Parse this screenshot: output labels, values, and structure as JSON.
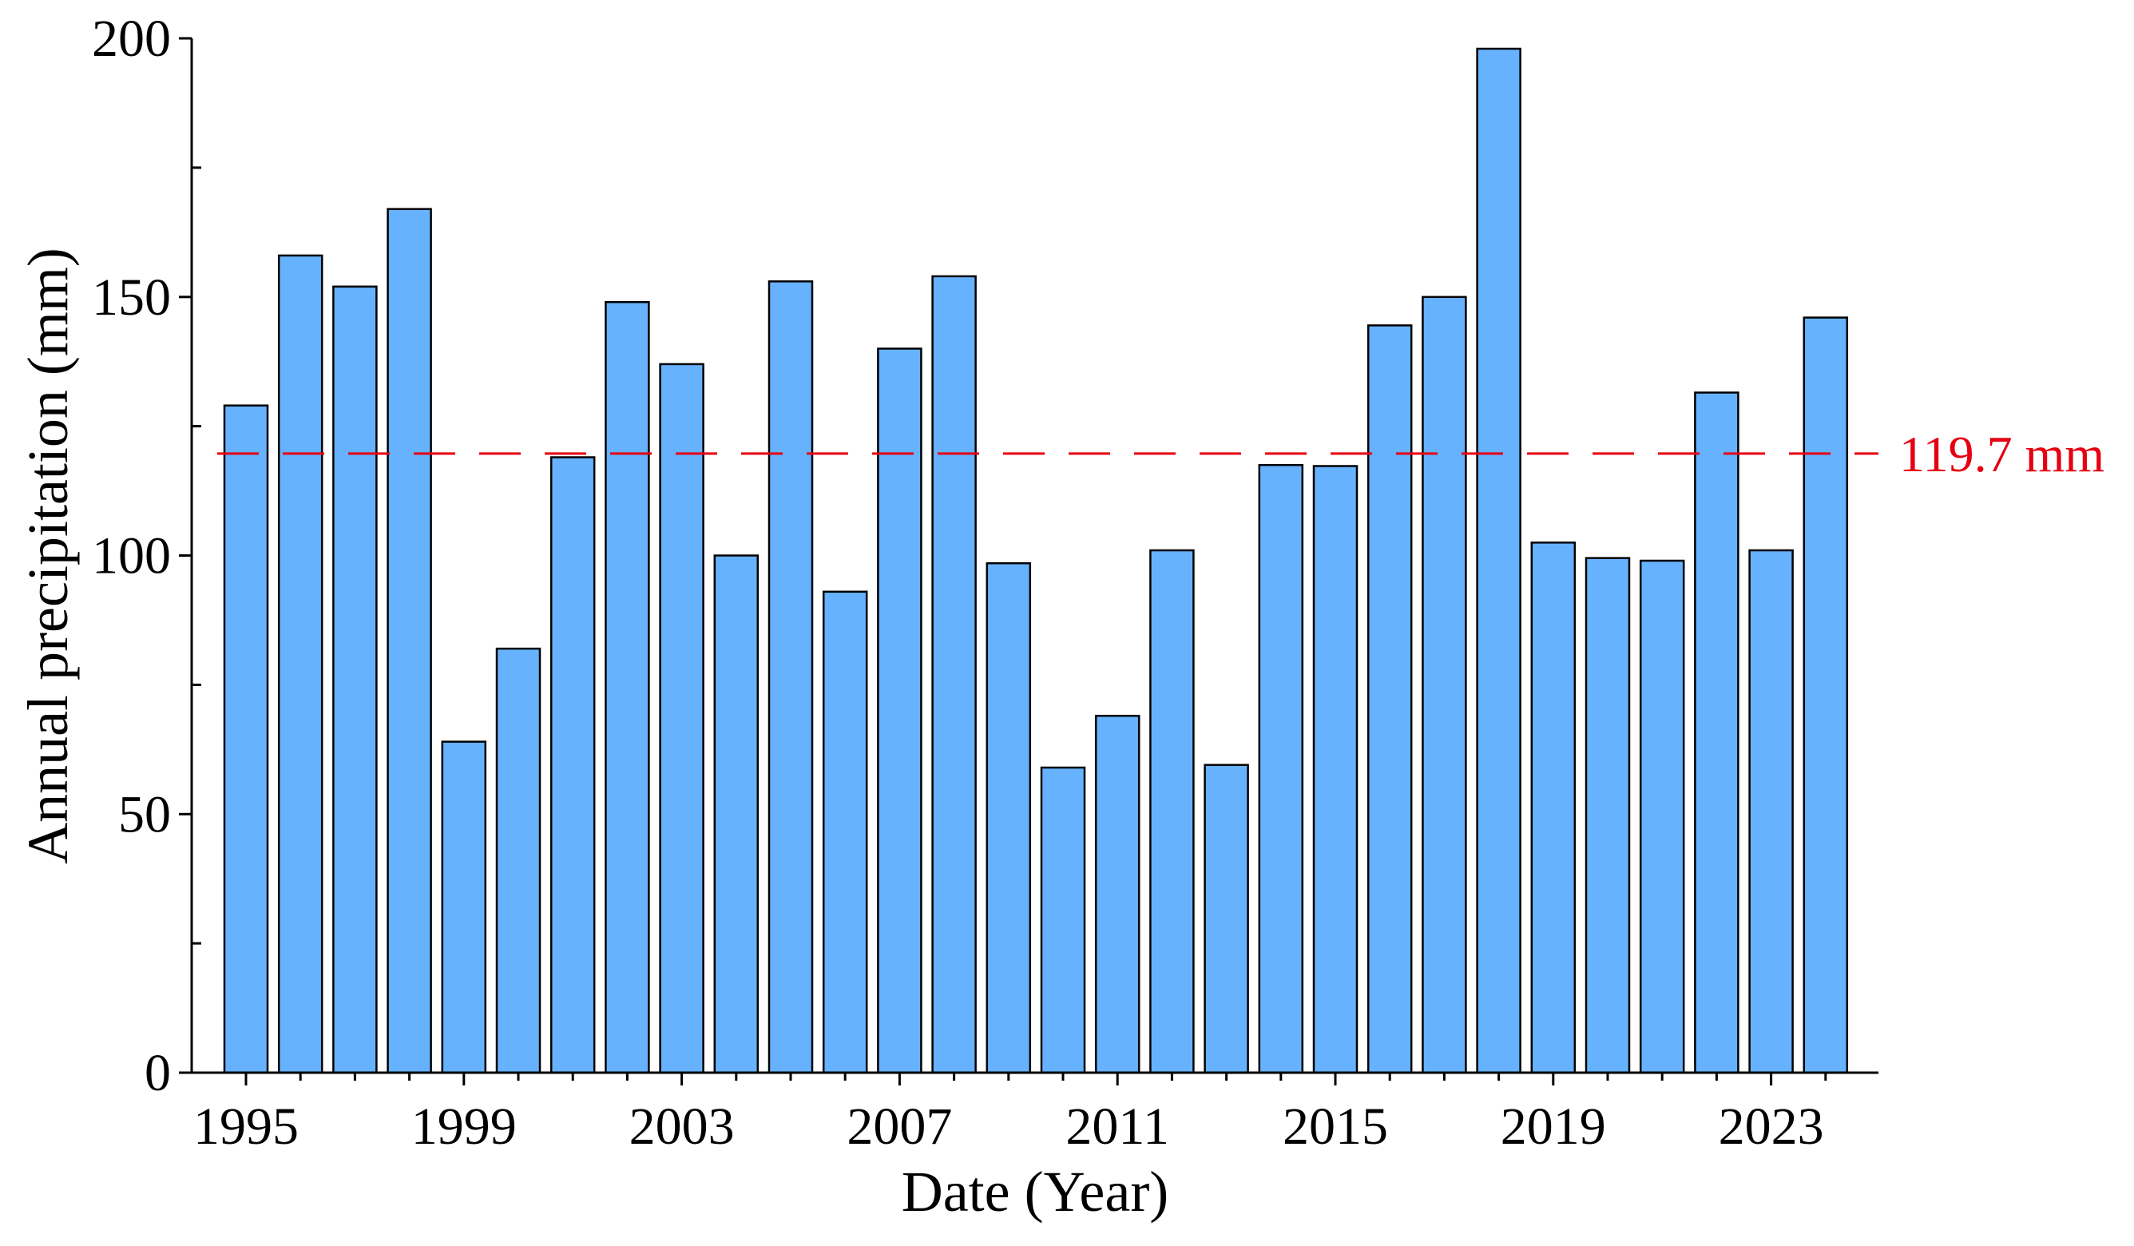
{
  "chart_data": {
    "type": "bar",
    "title": "",
    "xlabel": "Date (Year)",
    "ylabel": "Annual precipitation (mm)",
    "ylim": [
      0,
      200
    ],
    "y_ticks": [
      0,
      50,
      100,
      150,
      200
    ],
    "x_tick_labels": [
      "1995",
      "1999",
      "2003",
      "2007",
      "2011",
      "2015",
      "2019",
      "2023"
    ],
    "categories": [
      1995,
      1996,
      1997,
      1998,
      1999,
      2000,
      2001,
      2002,
      2003,
      2004,
      2005,
      2006,
      2007,
      2008,
      2009,
      2010,
      2011,
      2012,
      2013,
      2014,
      2015,
      2016,
      2017,
      2018,
      2019,
      2020,
      2021,
      2022,
      2023,
      2024
    ],
    "series": [
      {
        "values": [
          129,
          158,
          152,
          167,
          64,
          82,
          119,
          149,
          137,
          100,
          153,
          93,
          140,
          154,
          98.5,
          59,
          69,
          101,
          59.5,
          117.5,
          117.3,
          144.5,
          150,
          198,
          102.5,
          99.5,
          99,
          131.5,
          101,
          146
        ]
      }
    ],
    "reference_line": {
      "value": 119.7,
      "label": "119.7 mm",
      "style": "dashed",
      "color": "#e60012"
    },
    "grid": false,
    "legend": "none",
    "colors": {
      "bar_fill": "#66b2ff",
      "bar_stroke": "#000000",
      "axis": "#000000"
    }
  }
}
